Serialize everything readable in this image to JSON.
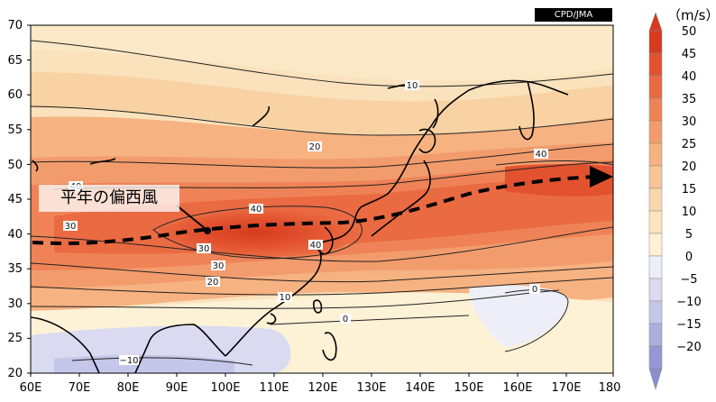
{
  "badge": "CPD/JMA",
  "annotation": "平年の偏西風",
  "colorbar": {
    "unit": "（m/s）",
    "tick_labels": [
      "50",
      "45",
      "40",
      "35",
      "30",
      "25",
      "20",
      "15",
      "10",
      "5",
      "0",
      "−5",
      "−10",
      "−15",
      "−20"
    ],
    "colors": [
      "#d73a1e",
      "#e2522f",
      "#ea6a42",
      "#ef8357",
      "#f29c6d",
      "#f6b281",
      "#f8c595",
      "#fad7a8",
      "#fbe5bd",
      "#fdf1d6",
      "#eeeef8",
      "#dadbf1",
      "#c5c6e9",
      "#acaee0",
      "#9497d4"
    ]
  },
  "axes": {
    "x_labels": [
      "60E",
      "70E",
      "80E",
      "90E",
      "100E",
      "110E",
      "120E",
      "130E",
      "140E",
      "150E",
      "160E",
      "170E",
      "180"
    ],
    "y_labels": [
      "70",
      "65",
      "60",
      "55",
      "50",
      "45",
      "40",
      "35",
      "30",
      "25",
      "20"
    ]
  },
  "contour_labels": [
    "10",
    "20",
    "30",
    "40",
    "40",
    "40",
    "30",
    "20",
    "10",
    "0",
    "0",
    "−10",
    "40",
    "30"
  ],
  "icons": {
    "pointer": "arrow-pointer-icon",
    "jet": "jet-stream-arrow-icon"
  }
}
